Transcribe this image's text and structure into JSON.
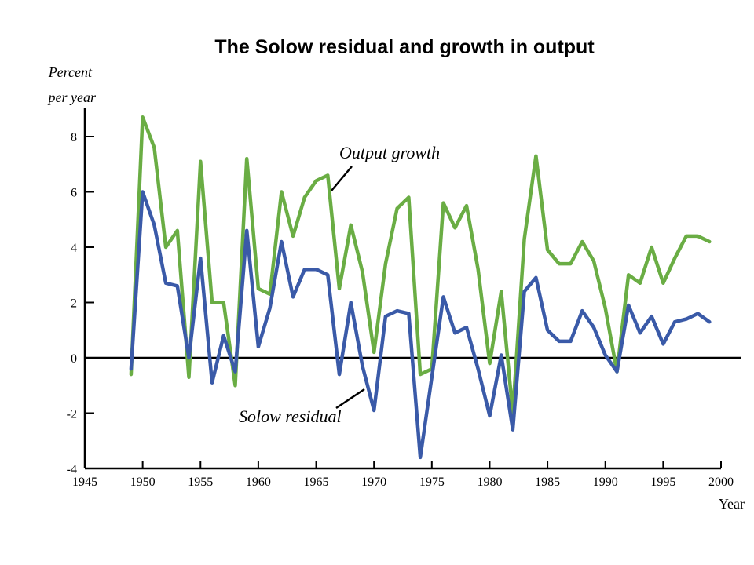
{
  "chart_data": {
    "type": "line",
    "title": "The Solow residual and growth in output",
    "ylabel_line1": "Percent",
    "ylabel_line2": "per year",
    "xlabel": "Year",
    "xlim": [
      1945,
      2000
    ],
    "ylim": [
      -4,
      9
    ],
    "xticks": [
      1945,
      1950,
      1955,
      1960,
      1965,
      1970,
      1975,
      1980,
      1985,
      1990,
      1995,
      2000
    ],
    "yticks": [
      -4,
      -2,
      0,
      2,
      4,
      6,
      8
    ],
    "series": [
      {
        "name": "Output growth",
        "color": "#6aad44",
        "x": [
          1949,
          1950,
          1951,
          1952,
          1953,
          1954,
          1955,
          1956,
          1957,
          1958,
          1959,
          1960,
          1961,
          1962,
          1963,
          1964,
          1965,
          1966,
          1967,
          1968,
          1969,
          1970,
          1971,
          1972,
          1973,
          1974,
          1975,
          1976,
          1977,
          1978,
          1979,
          1980,
          1981,
          1982,
          1983,
          1984,
          1985,
          1986,
          1987,
          1988,
          1989,
          1990,
          1991,
          1992,
          1993,
          1994,
          1995,
          1996,
          1997,
          1998,
          1999
        ],
        "values": [
          -0.6,
          8.7,
          7.6,
          4.0,
          4.6,
          -0.7,
          7.1,
          2.0,
          2.0,
          -1.0,
          7.2,
          2.5,
          2.3,
          6.0,
          4.4,
          5.8,
          6.4,
          6.6,
          2.5,
          4.8,
          3.1,
          0.2,
          3.4,
          5.4,
          5.8,
          -0.6,
          -0.4,
          5.6,
          4.7,
          5.5,
          3.2,
          -0.2,
          2.4,
          -2.0,
          4.3,
          7.3,
          3.9,
          3.4,
          3.4,
          4.2,
          3.5,
          1.8,
          -0.5,
          3.0,
          2.7,
          4.0,
          2.7,
          3.6,
          4.4,
          4.4,
          4.2
        ]
      },
      {
        "name": "Solow residual",
        "color": "#3a5aa8",
        "x": [
          1949,
          1950,
          1951,
          1952,
          1953,
          1954,
          1955,
          1956,
          1957,
          1958,
          1959,
          1960,
          1961,
          1962,
          1963,
          1964,
          1965,
          1966,
          1967,
          1968,
          1969,
          1970,
          1971,
          1972,
          1973,
          1974,
          1975,
          1976,
          1977,
          1978,
          1979,
          1980,
          1981,
          1982,
          1983,
          1984,
          1985,
          1986,
          1987,
          1988,
          1989,
          1990,
          1991,
          1992,
          1993,
          1994,
          1995,
          1996,
          1997,
          1998,
          1999
        ],
        "values": [
          -0.4,
          6.0,
          4.8,
          2.7,
          2.6,
          0.0,
          3.6,
          -0.9,
          0.8,
          -0.5,
          4.6,
          0.4,
          1.8,
          4.2,
          2.2,
          3.2,
          3.2,
          3.0,
          -0.6,
          2.0,
          -0.3,
          -1.9,
          1.5,
          1.7,
          1.6,
          -3.6,
          -0.7,
          2.2,
          0.9,
          1.1,
          -0.4,
          -2.1,
          0.1,
          -2.6,
          2.4,
          2.9,
          1.0,
          0.6,
          0.6,
          1.7,
          1.1,
          0.1,
          -0.5,
          1.9,
          0.9,
          1.5,
          0.5,
          1.3,
          1.4,
          1.6,
          1.3
        ]
      }
    ]
  }
}
